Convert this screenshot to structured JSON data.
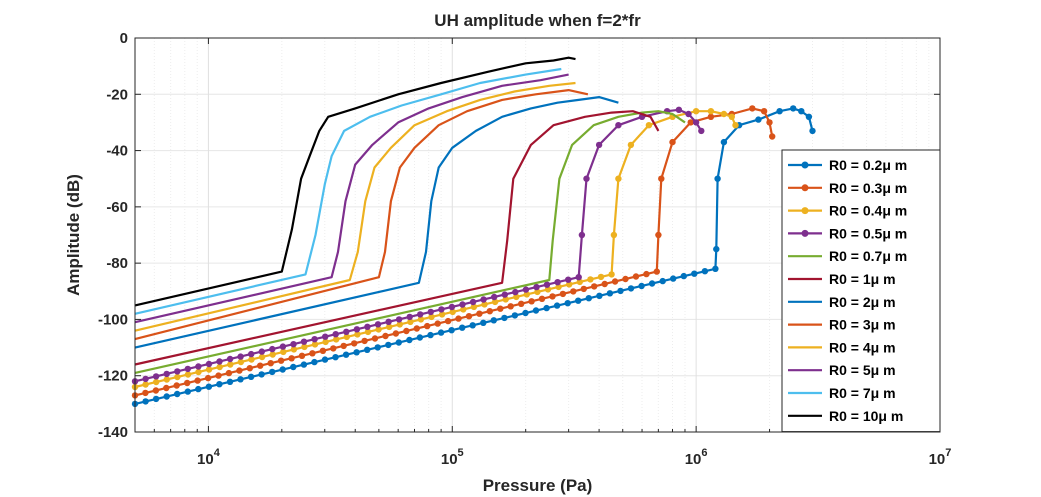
{
  "chart_data": {
    "type": "line",
    "title": "UH amplitude when f=2*fr",
    "xlabel": "Pressure (Pa)",
    "ylabel": "Amplitude (dB)",
    "xscale": "log",
    "xlim": [
      5000,
      10000000
    ],
    "ylim": [
      -140,
      0
    ],
    "y_ticks": [
      0,
      -20,
      -40,
      -60,
      -80,
      -100,
      -120,
      -140
    ],
    "x_ticks": [
      {
        "base": "10",
        "exp": "4",
        "value": 10000
      },
      {
        "base": "10",
        "exp": "5",
        "value": 100000
      },
      {
        "base": "10",
        "exp": "6",
        "value": 1000000
      },
      {
        "base": "10",
        "exp": "7",
        "value": 10000000
      }
    ],
    "grid": true,
    "legend_position": "right",
    "series": [
      {
        "name": "R0 = 0.2μ m",
        "color": "#0072BD",
        "markers": true,
        "points": [
          [
            5000,
            -130
          ],
          [
            1200000,
            -82
          ],
          [
            1210000,
            -75
          ],
          [
            1225000,
            -50
          ],
          [
            1300000,
            -37
          ],
          [
            1500000,
            -31
          ],
          [
            1800000,
            -29
          ],
          [
            2200000,
            -26
          ],
          [
            2500000,
            -25
          ],
          [
            2700000,
            -26
          ],
          [
            2900000,
            -28
          ],
          [
            3000000,
            -33
          ]
        ]
      },
      {
        "name": "R0 = 0.3μ m",
        "color": "#D95319",
        "markers": true,
        "points": [
          [
            5000,
            -127
          ],
          [
            690000,
            -83
          ],
          [
            700000,
            -70
          ],
          [
            720000,
            -50
          ],
          [
            800000,
            -37
          ],
          [
            950000,
            -30
          ],
          [
            1150000,
            -28
          ],
          [
            1400000,
            -27
          ],
          [
            1700000,
            -25
          ],
          [
            1900000,
            -26
          ],
          [
            2000000,
            -30
          ],
          [
            2050000,
            -35
          ]
        ]
      },
      {
        "name": "R0 = 0.4μ m",
        "color": "#EDB120",
        "markers": true,
        "points": [
          [
            5000,
            -124
          ],
          [
            450000,
            -84
          ],
          [
            460000,
            -70
          ],
          [
            480000,
            -50
          ],
          [
            540000,
            -38
          ],
          [
            640000,
            -31
          ],
          [
            800000,
            -28
          ],
          [
            1000000,
            -26
          ],
          [
            1150000,
            -26
          ],
          [
            1300000,
            -27
          ],
          [
            1400000,
            -28
          ],
          [
            1450000,
            -31
          ]
        ]
      },
      {
        "name": "R0 = 0.5μ m",
        "color": "#7E2F8E",
        "markers": true,
        "points": [
          [
            5000,
            -122
          ],
          [
            330000,
            -85
          ],
          [
            340000,
            -70
          ],
          [
            355000,
            -50
          ],
          [
            400000,
            -38
          ],
          [
            480000,
            -31
          ],
          [
            600000,
            -28
          ],
          [
            760000,
            -26
          ],
          [
            850000,
            -25.5
          ],
          [
            930000,
            -27
          ],
          [
            1000000,
            -30
          ],
          [
            1050000,
            -33
          ]
        ]
      },
      {
        "name": "R0 = 0.7μ m",
        "color": "#77AC30",
        "markers": false,
        "points": [
          [
            5000,
            -119
          ],
          [
            250000,
            -86
          ],
          [
            258000,
            -72
          ],
          [
            275000,
            -50
          ],
          [
            310000,
            -38
          ],
          [
            380000,
            -31
          ],
          [
            480000,
            -28
          ],
          [
            600000,
            -26.5
          ],
          [
            700000,
            -26
          ],
          [
            800000,
            -27
          ],
          [
            900000,
            -30
          ]
        ]
      },
      {
        "name": "R0 = 1μ m",
        "color": "#A2142F",
        "markers": false,
        "points": [
          [
            5000,
            -116
          ],
          [
            160000,
            -87
          ],
          [
            168000,
            -72
          ],
          [
            178000,
            -50
          ],
          [
            210000,
            -38
          ],
          [
            260000,
            -31
          ],
          [
            350000,
            -28
          ],
          [
            450000,
            -26.5
          ],
          [
            550000,
            -26
          ],
          [
            650000,
            -28
          ],
          [
            700000,
            -33
          ]
        ]
      },
      {
        "name": "R0 = 2μ m",
        "color": "#0072BD",
        "markers": false,
        "points": [
          [
            5000,
            -110
          ],
          [
            73000,
            -87
          ],
          [
            78000,
            -76
          ],
          [
            82000,
            -58
          ],
          [
            88000,
            -46
          ],
          [
            100000,
            -39
          ],
          [
            125000,
            -33
          ],
          [
            160000,
            -28
          ],
          [
            210000,
            -25
          ],
          [
            270000,
            -23
          ],
          [
            330000,
            -22
          ],
          [
            400000,
            -21
          ],
          [
            480000,
            -23
          ]
        ]
      },
      {
        "name": "R0 = 3μ m",
        "color": "#D95319",
        "markers": false,
        "points": [
          [
            5000,
            -107
          ],
          [
            50000,
            -85
          ],
          [
            53000,
            -76
          ],
          [
            56000,
            -58
          ],
          [
            61000,
            -46
          ],
          [
            70000,
            -39
          ],
          [
            88000,
            -31
          ],
          [
            115000,
            -26
          ],
          [
            160000,
            -22
          ],
          [
            220000,
            -20
          ],
          [
            300000,
            -18.5
          ],
          [
            360000,
            -20
          ]
        ]
      },
      {
        "name": "R0 = 4μ m",
        "color": "#EDB120",
        "markers": false,
        "points": [
          [
            5000,
            -104
          ],
          [
            38000,
            -86
          ],
          [
            41000,
            -76
          ],
          [
            44000,
            -58
          ],
          [
            48000,
            -46
          ],
          [
            56000,
            -39
          ],
          [
            70000,
            -31
          ],
          [
            95000,
            -26
          ],
          [
            130000,
            -22
          ],
          [
            180000,
            -19
          ],
          [
            250000,
            -17
          ],
          [
            320000,
            -16
          ]
        ]
      },
      {
        "name": "R0 = 5μ m",
        "color": "#7E2F8E",
        "markers": false,
        "points": [
          [
            5000,
            -101
          ],
          [
            32000,
            -85
          ],
          [
            34000,
            -76
          ],
          [
            36500,
            -58
          ],
          [
            40000,
            -45
          ],
          [
            47000,
            -38
          ],
          [
            60000,
            -30
          ],
          [
            80000,
            -25
          ],
          [
            110000,
            -21
          ],
          [
            160000,
            -17
          ],
          [
            230000,
            -15
          ],
          [
            300000,
            -13
          ]
        ]
      },
      {
        "name": "R0 = 7μ m",
        "color": "#4DBEEE",
        "markers": false,
        "points": [
          [
            5000,
            -98
          ],
          [
            25000,
            -84
          ],
          [
            27500,
            -70
          ],
          [
            30000,
            -52
          ],
          [
            32000,
            -42
          ],
          [
            36000,
            -33
          ],
          [
            46000,
            -28
          ],
          [
            62000,
            -24
          ],
          [
            90000,
            -20
          ],
          [
            130000,
            -16
          ],
          [
            200000,
            -13
          ],
          [
            280000,
            -11
          ]
        ]
      },
      {
        "name": "R0 = 10μ m",
        "color": "#000000",
        "markers": false,
        "points": [
          [
            5000,
            -95
          ],
          [
            20000,
            -83
          ],
          [
            22000,
            -68
          ],
          [
            24000,
            -50
          ],
          [
            26000,
            -42
          ],
          [
            28500,
            -33
          ],
          [
            31000,
            -28
          ],
          [
            40000,
            -25
          ],
          [
            60000,
            -20
          ],
          [
            90000,
            -16
          ],
          [
            140000,
            -12
          ],
          [
            200000,
            -9
          ],
          [
            260000,
            -8
          ],
          [
            300000,
            -7
          ],
          [
            320000,
            -7.5
          ]
        ]
      }
    ]
  }
}
